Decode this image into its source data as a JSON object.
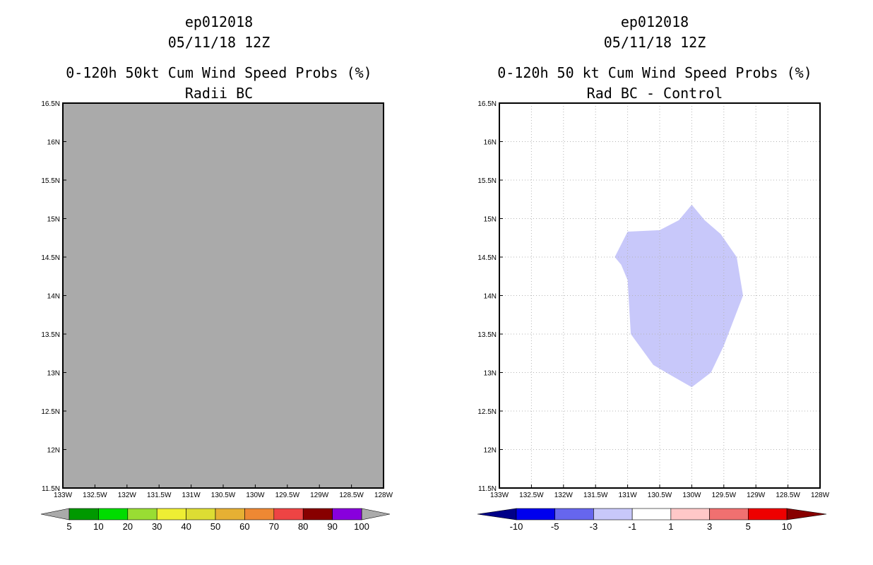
{
  "chart_data": [
    {
      "type": "map",
      "title_lines": [
        "ep012018",
        "05/11/18 12Z",
        "0-120h 50kt Cum Wind Speed Probs (%)",
        "Radii BC"
      ],
      "xlim": [
        -133,
        -128
      ],
      "ylim": [
        11.5,
        16.5
      ],
      "x_ticks": [
        -133,
        -132.5,
        -132,
        -131.5,
        -131,
        -130.5,
        -130,
        -129.5,
        -129,
        -128.5,
        -128
      ],
      "x_tick_labels": [
        "133W",
        "132.5W",
        "132W",
        "131.5W",
        "131W",
        "130.5W",
        "130W",
        "129.5W",
        "129W",
        "128.5W",
        "128W"
      ],
      "y_ticks": [
        11.5,
        12,
        12.5,
        13,
        13.5,
        14,
        14.5,
        15,
        15.5,
        16,
        16.5
      ],
      "y_tick_labels": [
        "11.5N",
        "12N",
        "12.5N",
        "13N",
        "13.5N",
        "14N",
        "14.5N",
        "15N",
        "15.5N",
        "16N",
        "16.5N"
      ],
      "grid": false,
      "background": "#aaaaaa",
      "colorbar": {
        "labels": [
          "5",
          "10",
          "20",
          "30",
          "40",
          "50",
          "60",
          "70",
          "80",
          "90",
          "100"
        ],
        "colors": [
          "#009900",
          "#00dd00",
          "#99dd33",
          "#eeee33",
          "#dddd33",
          "#e6b033",
          "#ee8833",
          "#ee4444",
          "#880000",
          "#8800dd"
        ],
        "low_color": "#aaaaaa",
        "high_color": "#aaaaaa"
      }
    },
    {
      "type": "map",
      "title_lines": [
        "ep012018",
        "05/11/18 12Z",
        "0-120h 50 kt Cum Wind Speed Probs (%)",
        "Rad BC - Control"
      ],
      "xlim": [
        -133,
        -128
      ],
      "ylim": [
        11.5,
        16.5
      ],
      "x_ticks": [
        -133,
        -132.5,
        -132,
        -131.5,
        -131,
        -130.5,
        -130,
        -129.5,
        -129,
        -128.5,
        -128
      ],
      "x_tick_labels": [
        "133W",
        "132.5W",
        "132W",
        "131.5W",
        "131W",
        "130.5W",
        "130W",
        "129.5W",
        "129W",
        "128.5W",
        "128W"
      ],
      "y_ticks": [
        11.5,
        12,
        12.5,
        13,
        13.5,
        14,
        14.5,
        15,
        15.5,
        16,
        16.5
      ],
      "y_tick_labels": [
        "11.5N",
        "12N",
        "12.5N",
        "13N",
        "13.5N",
        "14N",
        "14.5N",
        "15N",
        "15.5N",
        "16N",
        "16.5N"
      ],
      "grid": true,
      "background": "#ffffff",
      "contour": {
        "color": "#c8c8fa",
        "range": "-3 to -1",
        "polygon_lonlat": [
          [
            -130,
            15.18
          ],
          [
            -129.8,
            14.98
          ],
          [
            -129.55,
            14.8
          ],
          [
            -129.3,
            14.5
          ],
          [
            -129.2,
            14.0
          ],
          [
            -129.5,
            13.35
          ],
          [
            -129.7,
            13.0
          ],
          [
            -130,
            12.81
          ],
          [
            -130.4,
            13.0
          ],
          [
            -130.6,
            13.1
          ],
          [
            -130.95,
            13.5
          ],
          [
            -131,
            14.2
          ],
          [
            -131.1,
            14.4
          ],
          [
            -131.2,
            14.5
          ],
          [
            -131,
            14.83
          ],
          [
            -130.5,
            14.85
          ],
          [
            -130.2,
            14.98
          ]
        ]
      },
      "colorbar": {
        "labels": [
          "-10",
          "-5",
          "-3",
          "-1",
          "1",
          "3",
          "5",
          "10"
        ],
        "colors": [
          "#0000ee",
          "#6666ee",
          "#c8c8fa",
          "#ffffff",
          "#ffc8c8",
          "#f07070",
          "#ee0000"
        ],
        "low_color": "#000088",
        "high_color": "#880000"
      }
    }
  ]
}
